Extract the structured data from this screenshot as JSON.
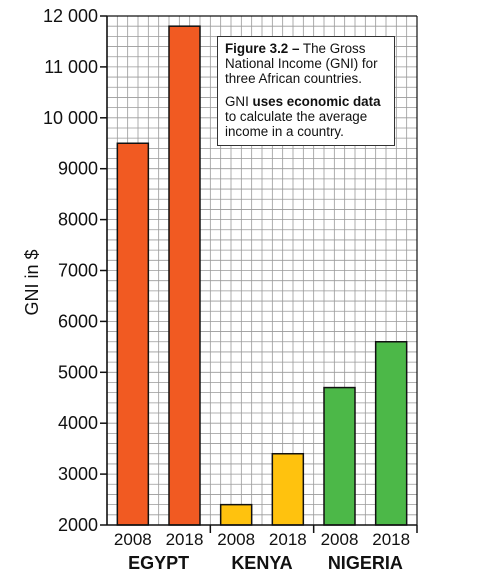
{
  "chart_data": {
    "type": "bar",
    "ylabel": "GNI in $",
    "ylim": [
      2000,
      12000
    ],
    "yticks": [
      2000,
      3000,
      4000,
      5000,
      6000,
      7000,
      8000,
      9000,
      10000,
      11000,
      12000
    ],
    "ytick_labels": [
      "2000",
      "3000",
      "4000",
      "5000",
      "6000",
      "7000",
      "8000",
      "9000",
      "10 000",
      "11 000",
      "12 000"
    ],
    "grid": true,
    "groups": [
      {
        "name": "EGYPT",
        "color": "#f15a22",
        "bars": [
          {
            "year": "2008",
            "value": 9500
          },
          {
            "year": "2018",
            "value": 11800
          }
        ]
      },
      {
        "name": "KENYA",
        "color": "#ffc20e",
        "bars": [
          {
            "year": "2008",
            "value": 2400
          },
          {
            "year": "2018",
            "value": 3400
          }
        ]
      },
      {
        "name": "NIGERIA",
        "color": "#4cb848",
        "bars": [
          {
            "year": "2008",
            "value": 4700
          },
          {
            "year": "2018",
            "value": 5600
          }
        ]
      }
    ]
  },
  "caption": {
    "figure_label": "Figure 3.2 –",
    "figure_text": " The Gross National Income (GNI) for three African countries.",
    "line2_pre": "GNI ",
    "line2_bold": "uses economic data",
    "line2_post": " to calculate the average income in a country."
  }
}
